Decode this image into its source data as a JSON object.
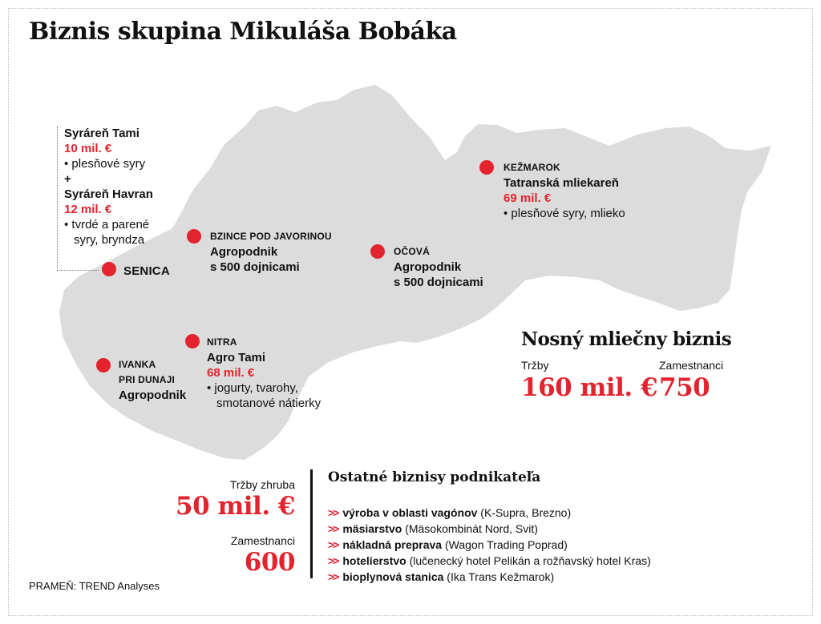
{
  "title": "Biznis skupina Mikuláša Bobáka",
  "colors": {
    "accent": "#e3232d",
    "map_fill": "#dcdcdc"
  },
  "locations": {
    "senica": {
      "name": "SENICA",
      "company1": "Syráreň Tami",
      "revenue1": "10 mil. €",
      "desc1": "• plesňové syry",
      "plus": "+",
      "company2": "Syráreň Havran",
      "revenue2": "12 mil. €",
      "desc2a": "• tvrdé a parené",
      "desc2b": "syry, bryndza"
    },
    "bzince": {
      "name": "BZINCE POD JAVORINOU",
      "line1": "Agropodnik",
      "line2": "s 500 dojnicami"
    },
    "ocova": {
      "name": "OČOVÁ",
      "line1": "Agropodnik",
      "line2": "s 500 dojnicami"
    },
    "kezmarok": {
      "name": "KEŽMAROK",
      "company": "Tatranská mliekareň",
      "revenue": "69 mil. €",
      "desc": "• plesňové syry, mlieko"
    },
    "nitra": {
      "name": "NITRA",
      "company": "Agro Tami",
      "revenue": "68 mil. €",
      "desc1": "• jogurty, tvarohy,",
      "desc2": "smotanové nátierky"
    },
    "ivanka": {
      "name1": "IVANKA",
      "name2": "PRI DUNAJI",
      "line1": "Agropodnik"
    }
  },
  "summary": {
    "title": "Nosný mliečny biznis",
    "revenue_label": "Tržby",
    "revenue_value": "160 mil. €",
    "employees_label": "Zamestnanci",
    "employees_value": "750"
  },
  "totals": {
    "revenue_label": "Tržby zhruba",
    "revenue_value": "50 mil. €",
    "employees_label": "Zamestnanci",
    "employees_value": "600"
  },
  "other": {
    "title": "Ostatné biznisy podnikateľa",
    "items": [
      {
        "bold": "výroba v oblasti vagónov",
        "rest": " (K-Supra, Brezno)"
      },
      {
        "bold": "mäsiarstvo",
        "rest": " (Mäsokombinát Nord, Svit)"
      },
      {
        "bold": "nákladná preprava",
        "rest": " (Wagon Trading Poprad)"
      },
      {
        "bold": "hotelierstvo",
        "rest": " (lučenecký hotel Pelikán a rožňavský hotel Kras)"
      },
      {
        "bold": "bioplynová stanica",
        "rest": " (Ika Trans Kežmarok)"
      }
    ]
  },
  "source": "PRAMEŇ: TREND Analyses"
}
